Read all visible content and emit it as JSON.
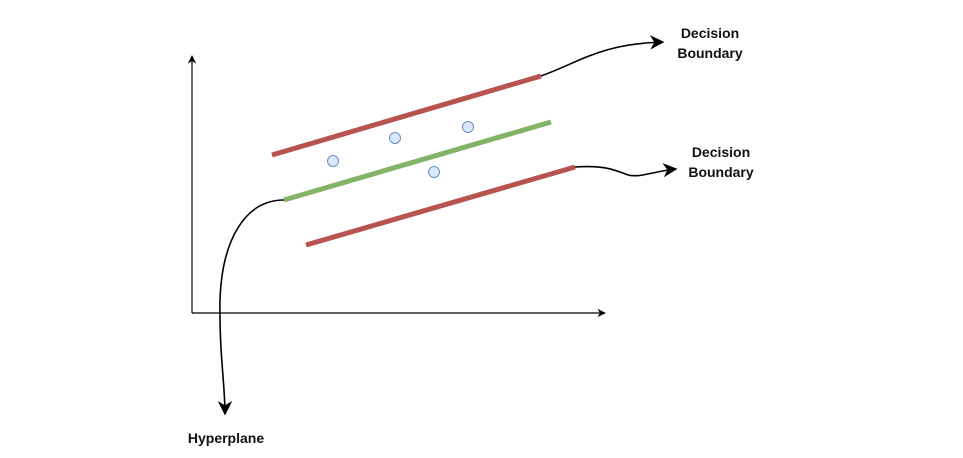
{
  "diagram": {
    "labels": {
      "upper_boundary": {
        "line1": "Decision",
        "line2": "Boundary"
      },
      "lower_boundary": {
        "line1": "Decision",
        "line2": "Boundary"
      },
      "hyperplane": "Hyperplane"
    },
    "colors": {
      "boundary_line": "#b85450",
      "hyperplane_line": "#82b366",
      "point_fill": "#dae8fc",
      "point_stroke": "#6c8ebf",
      "axis": "#000000",
      "text": "#111111"
    }
  }
}
